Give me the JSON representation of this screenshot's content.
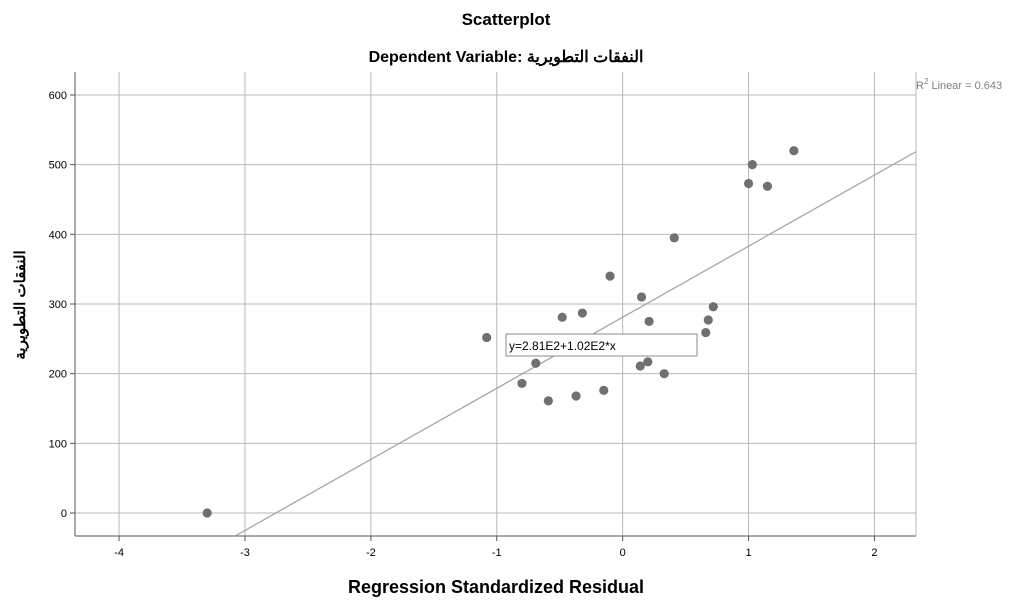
{
  "chart_data": {
    "type": "scatter",
    "title": "Scatterplot",
    "subtitle": "Dependent Variable: النفقات التطويرية",
    "xlabel": "Regression Standardized Residual",
    "ylabel": "النفقات التطويرية",
    "xlim": [
      -4.35,
      2.33
    ],
    "ylim": [
      -33,
      633
    ],
    "x_ticks": [
      -4,
      -3,
      -2,
      -1,
      0,
      1,
      2
    ],
    "y_ticks": [
      0,
      100,
      200,
      300,
      400,
      500,
      600
    ],
    "grid": true,
    "point_color": "#707070",
    "fit_line": {
      "label": "R² Linear = 0.643",
      "r2_prefix": "R",
      "r2_exp": "2",
      "r2_rest": " Linear = 0.643",
      "equation": "y=2.81E2+1.02E2*x",
      "intercept": 281,
      "slope": 102,
      "color": "#a0a0a0"
    },
    "points": [
      {
        "x": -3.3,
        "y": 0
      },
      {
        "x": -1.08,
        "y": 252
      },
      {
        "x": -0.8,
        "y": 186
      },
      {
        "x": -0.69,
        "y": 215
      },
      {
        "x": -0.59,
        "y": 161
      },
      {
        "x": -0.48,
        "y": 281
      },
      {
        "x": -0.37,
        "y": 168
      },
      {
        "x": -0.32,
        "y": 287
      },
      {
        "x": -0.15,
        "y": 176
      },
      {
        "x": -0.1,
        "y": 340
      },
      {
        "x": 0.14,
        "y": 211
      },
      {
        "x": 0.15,
        "y": 310
      },
      {
        "x": 0.2,
        "y": 217
      },
      {
        "x": 0.21,
        "y": 275
      },
      {
        "x": 0.33,
        "y": 200
      },
      {
        "x": 0.41,
        "y": 395
      },
      {
        "x": 0.66,
        "y": 259
      },
      {
        "x": 0.68,
        "y": 277
      },
      {
        "x": 0.72,
        "y": 296
      },
      {
        "x": 1.0,
        "y": 473
      },
      {
        "x": 1.03,
        "y": 500
      },
      {
        "x": 1.15,
        "y": 469
      },
      {
        "x": 1.36,
        "y": 520
      }
    ]
  }
}
